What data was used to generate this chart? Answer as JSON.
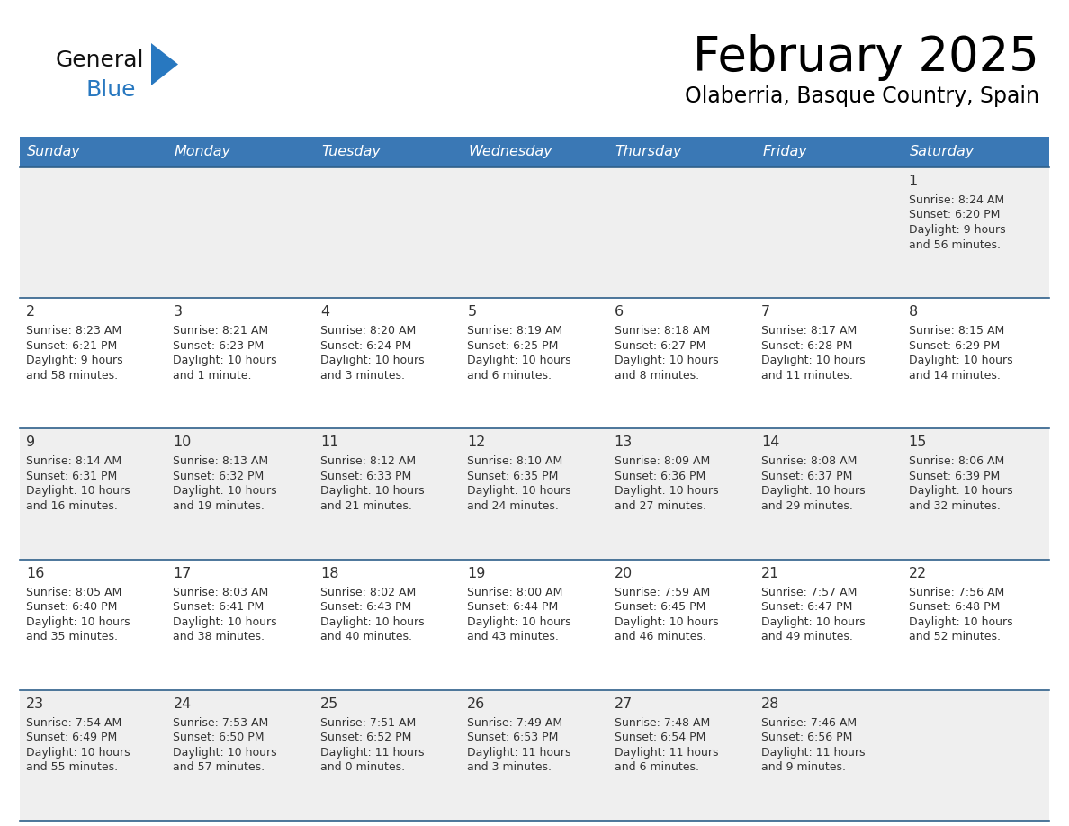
{
  "title": "February 2025",
  "subtitle": "Olaberria, Basque Country, Spain",
  "days_of_week": [
    "Sunday",
    "Monday",
    "Tuesday",
    "Wednesday",
    "Thursday",
    "Friday",
    "Saturday"
  ],
  "header_bg": "#3A78B5",
  "header_text": "#FFFFFF",
  "cell_bg_odd": "#EFEFEF",
  "cell_bg_even": "#FFFFFF",
  "line_color": "#2E5F8A",
  "day_num_color": "#333333",
  "cell_text_color": "#333333",
  "logo_general_color": "#111111",
  "logo_blue_color": "#2878C0",
  "calendar_data": [
    [
      null,
      null,
      null,
      null,
      null,
      null,
      {
        "day": 1,
        "sunrise": "8:24 AM",
        "sunset": "6:20 PM",
        "daylight": "9 hours",
        "daylight2": "and 56 minutes."
      }
    ],
    [
      {
        "day": 2,
        "sunrise": "8:23 AM",
        "sunset": "6:21 PM",
        "daylight": "9 hours",
        "daylight2": "and 58 minutes."
      },
      {
        "day": 3,
        "sunrise": "8:21 AM",
        "sunset": "6:23 PM",
        "daylight": "10 hours",
        "daylight2": "and 1 minute."
      },
      {
        "day": 4,
        "sunrise": "8:20 AM",
        "sunset": "6:24 PM",
        "daylight": "10 hours",
        "daylight2": "and 3 minutes."
      },
      {
        "day": 5,
        "sunrise": "8:19 AM",
        "sunset": "6:25 PM",
        "daylight": "10 hours",
        "daylight2": "and 6 minutes."
      },
      {
        "day": 6,
        "sunrise": "8:18 AM",
        "sunset": "6:27 PM",
        "daylight": "10 hours",
        "daylight2": "and 8 minutes."
      },
      {
        "day": 7,
        "sunrise": "8:17 AM",
        "sunset": "6:28 PM",
        "daylight": "10 hours",
        "daylight2": "and 11 minutes."
      },
      {
        "day": 8,
        "sunrise": "8:15 AM",
        "sunset": "6:29 PM",
        "daylight": "10 hours",
        "daylight2": "and 14 minutes."
      }
    ],
    [
      {
        "day": 9,
        "sunrise": "8:14 AM",
        "sunset": "6:31 PM",
        "daylight": "10 hours",
        "daylight2": "and 16 minutes."
      },
      {
        "day": 10,
        "sunrise": "8:13 AM",
        "sunset": "6:32 PM",
        "daylight": "10 hours",
        "daylight2": "and 19 minutes."
      },
      {
        "day": 11,
        "sunrise": "8:12 AM",
        "sunset": "6:33 PM",
        "daylight": "10 hours",
        "daylight2": "and 21 minutes."
      },
      {
        "day": 12,
        "sunrise": "8:10 AM",
        "sunset": "6:35 PM",
        "daylight": "10 hours",
        "daylight2": "and 24 minutes."
      },
      {
        "day": 13,
        "sunrise": "8:09 AM",
        "sunset": "6:36 PM",
        "daylight": "10 hours",
        "daylight2": "and 27 minutes."
      },
      {
        "day": 14,
        "sunrise": "8:08 AM",
        "sunset": "6:37 PM",
        "daylight": "10 hours",
        "daylight2": "and 29 minutes."
      },
      {
        "day": 15,
        "sunrise": "8:06 AM",
        "sunset": "6:39 PM",
        "daylight": "10 hours",
        "daylight2": "and 32 minutes."
      }
    ],
    [
      {
        "day": 16,
        "sunrise": "8:05 AM",
        "sunset": "6:40 PM",
        "daylight": "10 hours",
        "daylight2": "and 35 minutes."
      },
      {
        "day": 17,
        "sunrise": "8:03 AM",
        "sunset": "6:41 PM",
        "daylight": "10 hours",
        "daylight2": "and 38 minutes."
      },
      {
        "day": 18,
        "sunrise": "8:02 AM",
        "sunset": "6:43 PM",
        "daylight": "10 hours",
        "daylight2": "and 40 minutes."
      },
      {
        "day": 19,
        "sunrise": "8:00 AM",
        "sunset": "6:44 PM",
        "daylight": "10 hours",
        "daylight2": "and 43 minutes."
      },
      {
        "day": 20,
        "sunrise": "7:59 AM",
        "sunset": "6:45 PM",
        "daylight": "10 hours",
        "daylight2": "and 46 minutes."
      },
      {
        "day": 21,
        "sunrise": "7:57 AM",
        "sunset": "6:47 PM",
        "daylight": "10 hours",
        "daylight2": "and 49 minutes."
      },
      {
        "day": 22,
        "sunrise": "7:56 AM",
        "sunset": "6:48 PM",
        "daylight": "10 hours",
        "daylight2": "and 52 minutes."
      }
    ],
    [
      {
        "day": 23,
        "sunrise": "7:54 AM",
        "sunset": "6:49 PM",
        "daylight": "10 hours",
        "daylight2": "and 55 minutes."
      },
      {
        "day": 24,
        "sunrise": "7:53 AM",
        "sunset": "6:50 PM",
        "daylight": "10 hours",
        "daylight2": "and 57 minutes."
      },
      {
        "day": 25,
        "sunrise": "7:51 AM",
        "sunset": "6:52 PM",
        "daylight": "11 hours",
        "daylight2": "and 0 minutes."
      },
      {
        "day": 26,
        "sunrise": "7:49 AM",
        "sunset": "6:53 PM",
        "daylight": "11 hours",
        "daylight2": "and 3 minutes."
      },
      {
        "day": 27,
        "sunrise": "7:48 AM",
        "sunset": "6:54 PM",
        "daylight": "11 hours",
        "daylight2": "and 6 minutes."
      },
      {
        "day": 28,
        "sunrise": "7:46 AM",
        "sunset": "6:56 PM",
        "daylight": "11 hours",
        "daylight2": "and 9 minutes."
      },
      null
    ]
  ]
}
